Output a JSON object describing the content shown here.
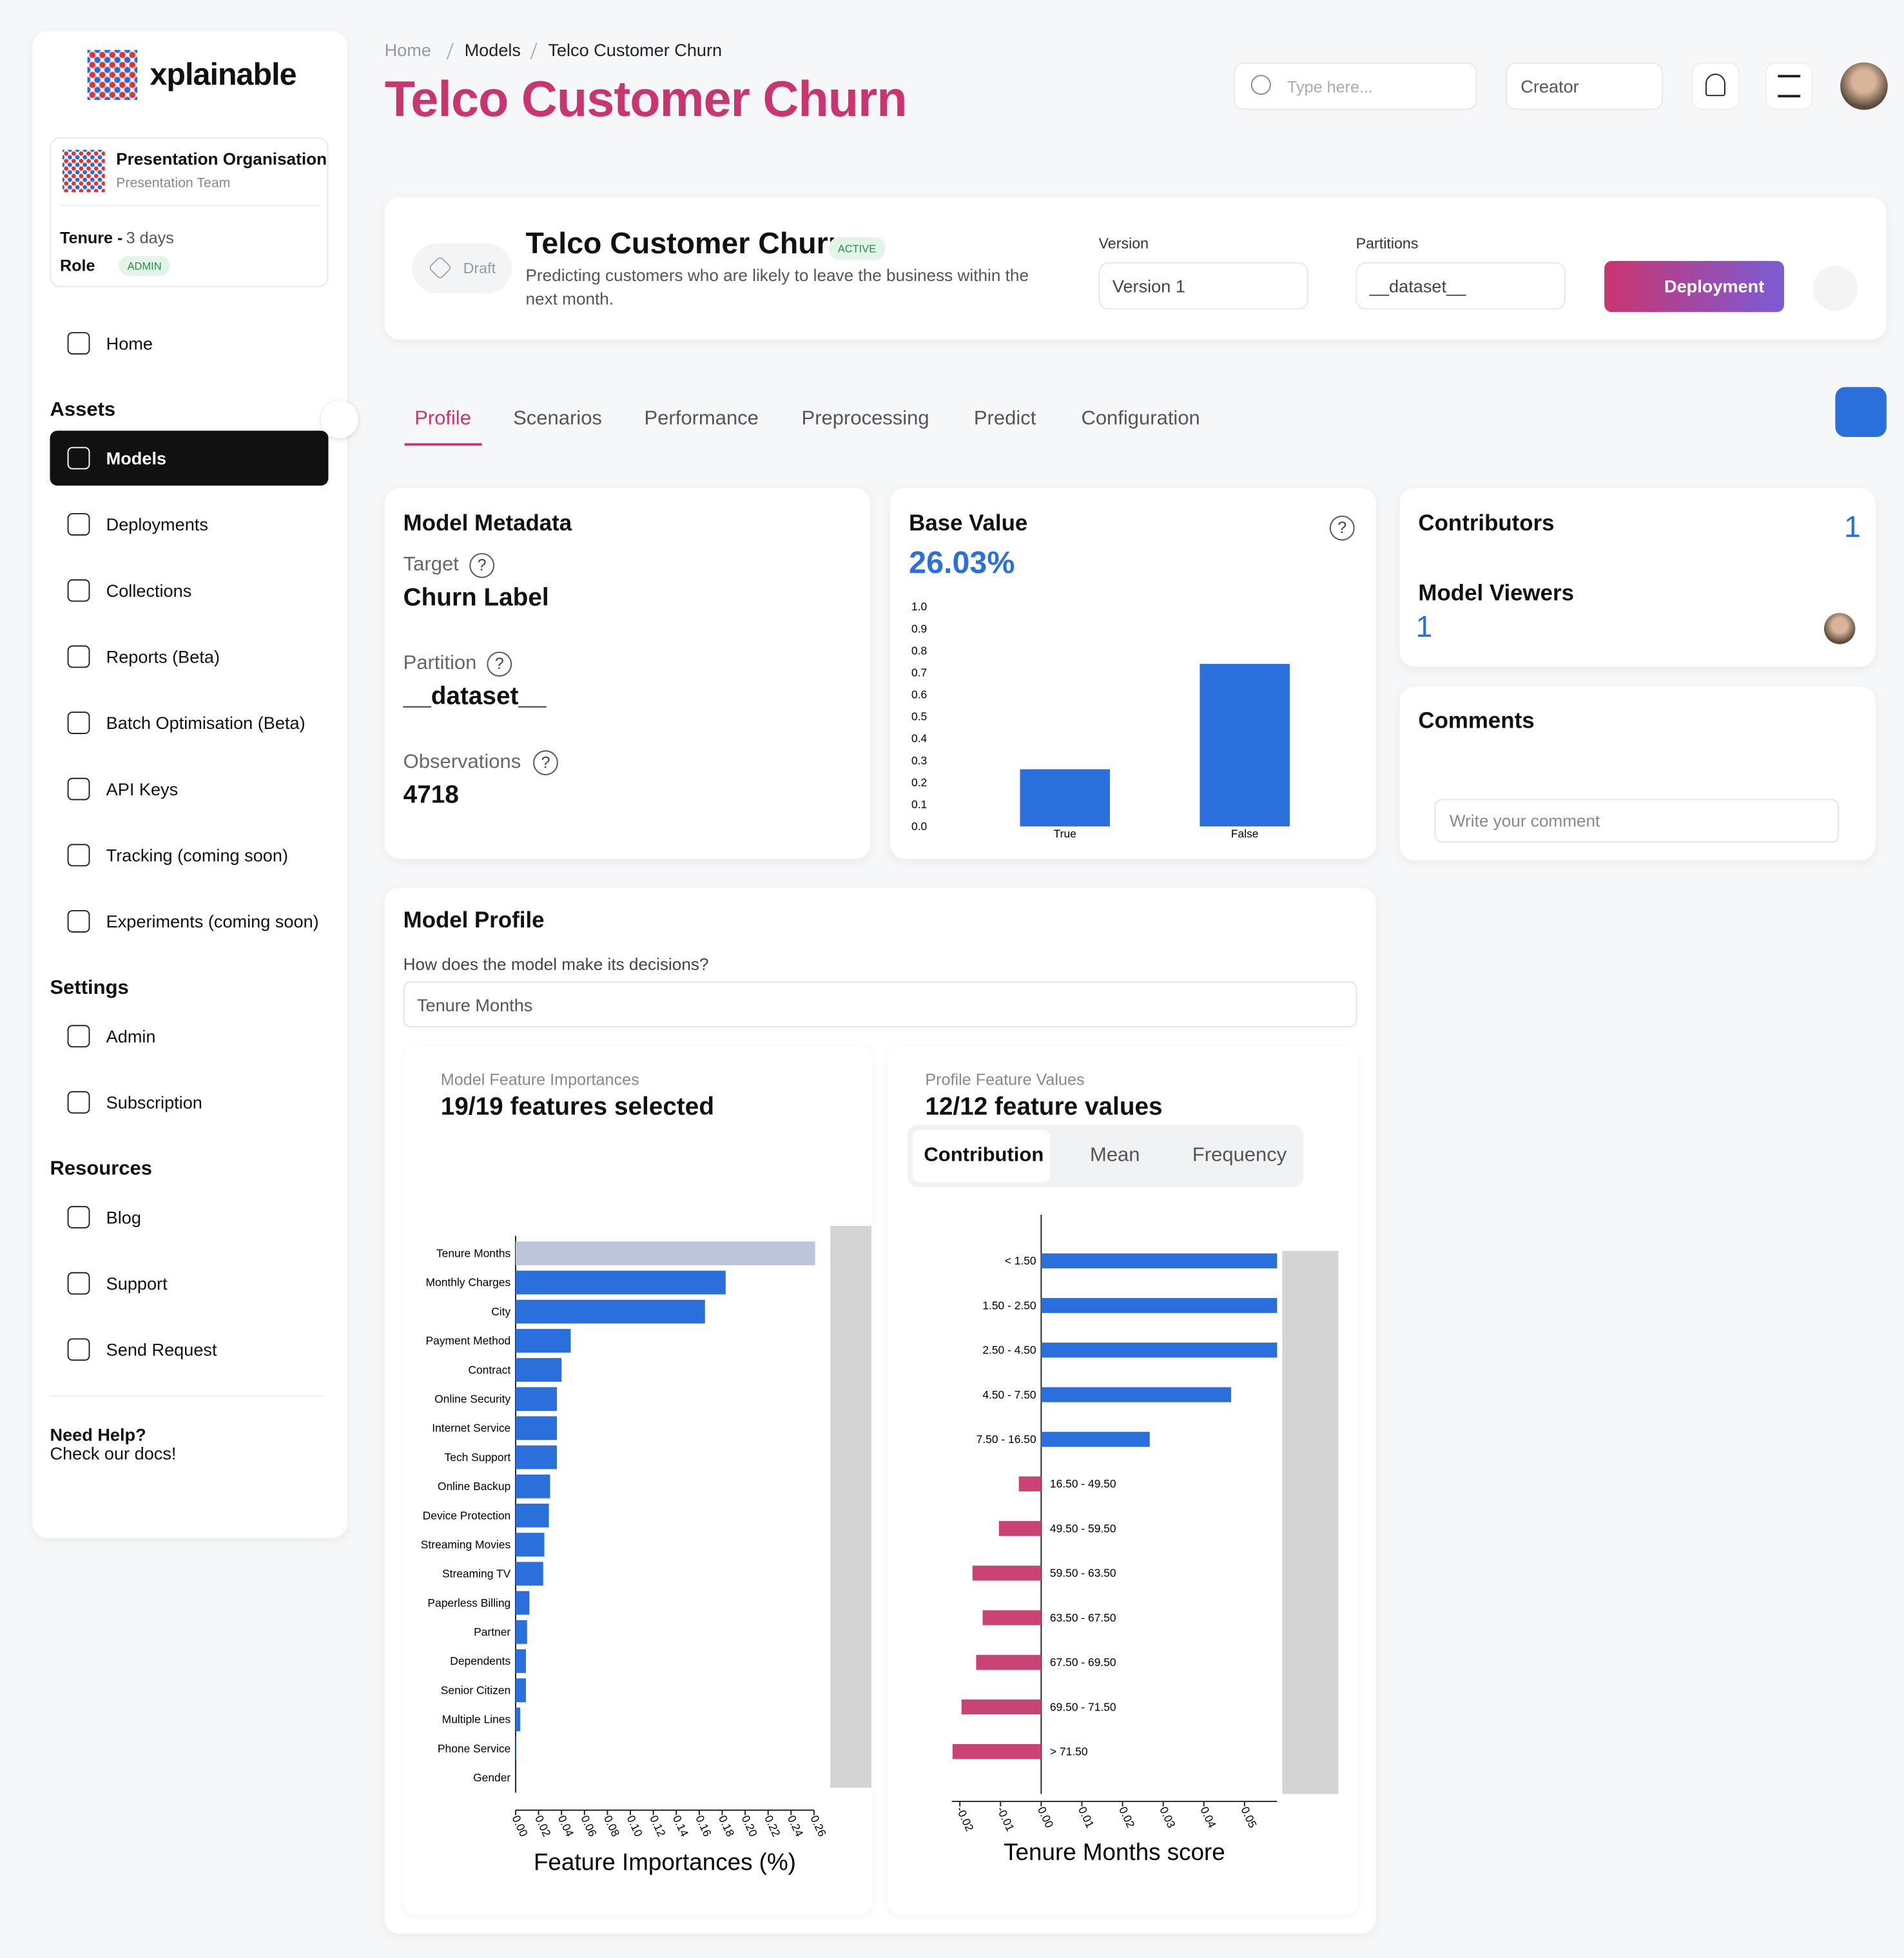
{
  "sidebar": {
    "brand": "xplainable",
    "org": {
      "name": "Presentation Organisation",
      "team": "Presentation Team"
    },
    "tenure_label": "Tenure -",
    "tenure": "3 days",
    "role_label": "Role",
    "role": "ADMIN",
    "home": "Home",
    "sections": [
      {
        "title": "Assets",
        "items": [
          "Models",
          "Deployments",
          "Collections",
          "Reports (Beta)",
          "Batch Optimisation (Beta)",
          "API Keys",
          "Tracking (coming soon)",
          "Experiments (coming soon)"
        ]
      },
      {
        "title": "Settings",
        "items": [
          "Admin",
          "Subscription"
        ]
      },
      {
        "title": "Resources",
        "items": [
          "Blog",
          "Support",
          "Send Request"
        ]
      }
    ],
    "help": {
      "title": "Need Help?",
      "link": "Check our docs!"
    }
  },
  "header": {
    "breadcrumb": [
      "Home",
      "Models",
      "Telco Customer Churn"
    ],
    "title": "Telco Customer Churn",
    "search_placeholder": "Type here...",
    "role_select": "Creator"
  },
  "model": {
    "badge": "Draft",
    "name": "Telco Customer Churn",
    "status": "ACTIVE",
    "description": "Predicting customers who are likely to leave the business within the next month.",
    "version_label": "Version",
    "version": "Version 1",
    "partitions_label": "Partitions",
    "partition": "__dataset__",
    "button": "Deployment"
  },
  "tabs": [
    "Profile",
    "Scenarios",
    "Performance",
    "Preprocessing",
    "Predict",
    "Configuration"
  ],
  "help_icon": "?",
  "metadata": {
    "title": "Model Metadata",
    "fields": [
      {
        "label": "Target",
        "value": "Churn Label"
      },
      {
        "label": "Partition",
        "value": "__dataset__"
      },
      {
        "label": "Observations",
        "value": "4718"
      }
    ]
  },
  "base_value": {
    "title": "Base Value",
    "value": "26.03%",
    "chart": {
      "type": "bar",
      "categories": [
        "True",
        "False"
      ],
      "values": [
        0.2603,
        0.7397
      ],
      "color": "#2a6fdb",
      "ylim": [
        0,
        1
      ],
      "yticks": [
        {
          "value": 0,
          "label": "0.0"
        },
        {
          "value": 0.1,
          "label": "0.1"
        },
        {
          "value": 0.2,
          "label": "0.2"
        },
        {
          "value": 0.3,
          "label": "0.3"
        },
        {
          "value": 0.4,
          "label": "0.4"
        },
        {
          "value": 0.5,
          "label": "0.5"
        },
        {
          "value": 0.6,
          "label": "0.6"
        },
        {
          "value": 0.7,
          "label": "0.7"
        },
        {
          "value": 0.8,
          "label": "0.8"
        },
        {
          "value": 0.9,
          "label": "0.9"
        },
        {
          "value": 1,
          "label": "1.0"
        }
      ]
    }
  },
  "contributors": {
    "title": "Contributors",
    "count": "1",
    "viewers_title": "Model Viewers",
    "viewers": "1"
  },
  "comments": {
    "title": "Comments",
    "placeholder": "Write your comment"
  },
  "profile": {
    "title": "Model Profile",
    "question": "How does the model make its decisions?",
    "feature": "Tenure Months",
    "importances": {
      "subtitle": "Model Feature Importances",
      "heading": "19/19 features selected",
      "chart": {
        "type": "hbar",
        "x_label": "Feature Importances (%)",
        "categories": [
          "Tenure Months",
          "Monthly Charges",
          "City",
          "Payment Method",
          "Contract",
          "Online Security",
          "Internet Service",
          "Tech Support",
          "Online Backup",
          "Device Protection",
          "Streaming Movies",
          "Streaming TV",
          "Paperless Billing",
          "Partner",
          "Dependents",
          "Senior Citizen",
          "Multiple Lines",
          "Phone Service",
          "Gender"
        ],
        "values": [
          0.261,
          0.183,
          0.165,
          0.048,
          0.04,
          0.036,
          0.036,
          0.036,
          0.03,
          0.029,
          0.025,
          0.024,
          0.012,
          0.01,
          0.009,
          0.009,
          0.004,
          0.0005,
          0
        ],
        "colors": [
          "#bcc6d8",
          "#2a6fdb",
          "#2a6fdb",
          "#2a6fdb",
          "#2a6fdb",
          "#2a6fdb",
          "#2a6fdb",
          "#2a6fdb",
          "#2a6fdb",
          "#2a6fdb",
          "#2a6fdb",
          "#2a6fdb",
          "#2a6fdb",
          "#2a6fdb",
          "#2a6fdb",
          "#2a6fdb",
          "#2a6fdb",
          "#2a6fdb",
          "#2a6fdb"
        ],
        "xlim": [
          0,
          0.26
        ],
        "xticks": [
          {
            "value": 0,
            "label": "0.00"
          },
          {
            "value": 0.02,
            "label": "0.02"
          },
          {
            "value": 0.04,
            "label": "0.04"
          },
          {
            "value": 0.06,
            "label": "0.06"
          },
          {
            "value": 0.08,
            "label": "0.08"
          },
          {
            "value": 0.1,
            "label": "0.10"
          },
          {
            "value": 0.12,
            "label": "0.12"
          },
          {
            "value": 0.14,
            "label": "0.14"
          },
          {
            "value": 0.16,
            "label": "0.16"
          },
          {
            "value": 0.18,
            "label": "0.18"
          },
          {
            "value": 0.2,
            "label": "0.20"
          },
          {
            "value": 0.22,
            "label": "0.22"
          },
          {
            "value": 0.24,
            "label": "0.24"
          },
          {
            "value": 0.26,
            "label": "0.26"
          }
        ]
      }
    },
    "values_chart": {
      "subtitle": "Profile Feature Values",
      "heading": "12/12 feature values",
      "toggles": [
        "Contribution",
        "Mean",
        "Frequency"
      ],
      "chart": {
        "type": "hbar",
        "x_label": "Tenure Months score",
        "categories": [
          "< 1.50",
          "1.50 - 2.50",
          "2.50 - 4.50",
          "4.50 - 7.50",
          "7.50 - 16.50",
          "16.50 - 49.50",
          "49.50 - 59.50",
          "59.50 - 63.50",
          "63.50 - 67.50",
          "67.50 - 69.50",
          "69.50 - 71.50",
          "> 71.50"
        ],
        "values": [
          0.058,
          0.058,
          0.058,
          0.0467,
          0.0267,
          -0.0055,
          -0.0104,
          -0.0169,
          -0.0144,
          -0.016,
          -0.0196,
          -0.0218
        ],
        "color": "#2a6fdb",
        "negative_color": "#c94474",
        "xlim": [
          -0.022,
          0.058
        ],
        "xticks": [
          -0.02,
          -0.01,
          {
            "value": 0,
            "label": "0.00"
          },
          0.01,
          0.02,
          0.03,
          0.04,
          0.05
        ]
      }
    }
  }
}
